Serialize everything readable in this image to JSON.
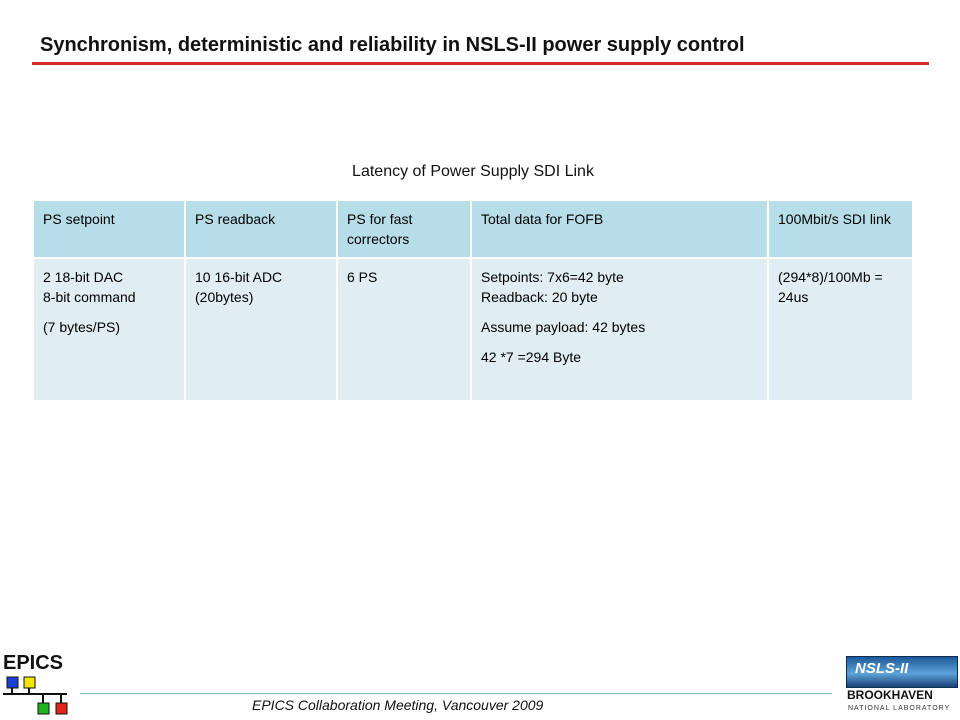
{
  "slide": {
    "title": "Synchronism, deterministic and reliability in NSLS-II power supply control",
    "caption": "Latency of Power Supply SDI Link"
  },
  "table": {
    "headers": [
      "PS setpoint",
      "PS readback",
      "PS for fast correctors",
      "Total data for FOFB",
      "100Mbit/s SDI link"
    ],
    "row": {
      "setpoint": {
        "line1": "2 18-bit DAC",
        "line2": "8-bit command",
        "line3": "(7 bytes/PS)"
      },
      "readback": "10 16-bit ADC (20bytes)",
      "fast_correctors": "6 PS",
      "total": {
        "line1": "Setpoints: 7x6=42 byte",
        "line2": "Readback: 20 byte",
        "line3": "Assume payload: 42 bytes",
        "line4": "42 *7 =294 Byte"
      },
      "sdi": "(294*8)/100Mb = 24us"
    }
  },
  "footer": {
    "text": "EPICS Collaboration Meeting, Vancouver 2009",
    "epics_logo_text": "EPICS",
    "lab_logo": {
      "nsls": "NSLS-II",
      "brookhaven": "BROOKHAVEN",
      "natlab": "NATIONAL LABORATORY"
    }
  },
  "colors": {
    "title_rule": "#d9292b",
    "header_fill": "#b7dde8",
    "body_fill": "#e0eef3",
    "footer_rule": "#7fb8a2"
  }
}
